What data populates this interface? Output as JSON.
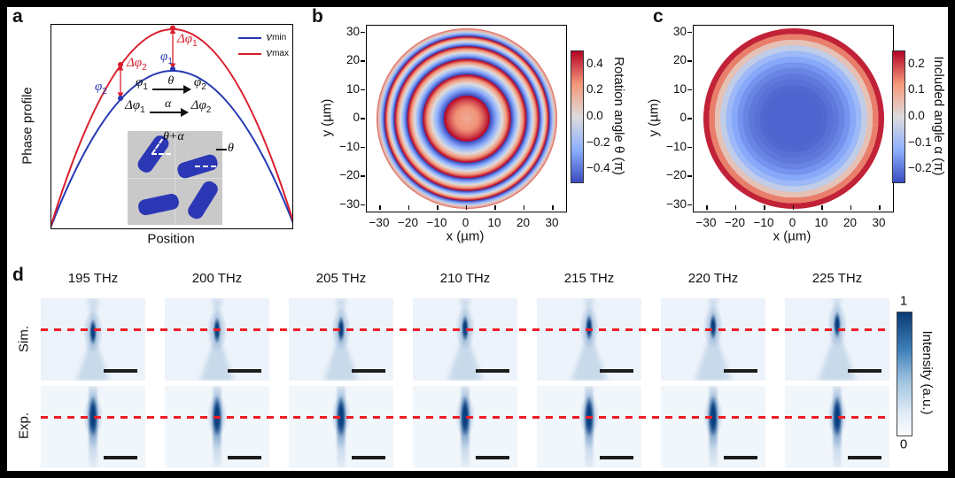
{
  "colors": {
    "frame": "#000000",
    "accent_red": "#d81e2c",
    "accent_blue": "#2438b2",
    "dash_red": "#ee1c25",
    "scale_bar": "#1c1c1c",
    "inset_bg": "#c9c9c9",
    "meta_atom_blue": "#2b37b5",
    "colormap_diverging": [
      {
        "v": -0.5,
        "c": "#3b4cc0"
      },
      {
        "v": -0.25,
        "c": "#8db0fe"
      },
      {
        "v": 0,
        "c": "#dddcdc"
      },
      {
        "v": 0.25,
        "c": "#f4987a"
      },
      {
        "v": 0.5,
        "c": "#b40426"
      }
    ],
    "blues_colormap": [
      {
        "v": 0,
        "c": "#fbfdff"
      },
      {
        "v": 0.2,
        "c": "#dce9f5"
      },
      {
        "v": 0.45,
        "c": "#9dc2de"
      },
      {
        "v": 0.7,
        "c": "#3e7fb8"
      },
      {
        "v": 1,
        "c": "#0a3a74"
      }
    ]
  },
  "panel_a": {
    "label": "a",
    "ylabel": "Phase profile",
    "xlabel": "Position",
    "legend": [
      {
        "sym": "ν",
        "sub": "min"
      },
      {
        "sym": "ν",
        "sub": "max"
      }
    ],
    "annotations": {
      "dphi1": {
        "t": "Δφ",
        "s": "1"
      },
      "phi1": {
        "t": "φ",
        "s": "1"
      },
      "dphi2": {
        "t": "Δφ",
        "s": "2"
      },
      "phi2": {
        "t": "φ",
        "s": "2"
      },
      "map_theta": {
        "from_t": "φ",
        "from_s": "1",
        "over": "θ",
        "to_t": "φ",
        "to_s": "2"
      },
      "map_alpha": {
        "from_t": "Δφ",
        "from_s": "1",
        "over": "α",
        "to_t": "Δφ",
        "to_s": "2"
      },
      "inset_top_angle": "θ+α",
      "inset_right_angle": "θ"
    }
  },
  "panel_b": {
    "label": "b",
    "xlabel": "x (µm)",
    "ylabel": "y (µm)",
    "xticks": [
      {
        "label": "−30",
        "v": -30
      },
      {
        "label": "−20",
        "v": -20
      },
      {
        "label": "−10",
        "v": -10
      },
      {
        "label": "0",
        "v": 0
      },
      {
        "label": "10",
        "v": 10
      },
      {
        "label": "20",
        "v": 20
      },
      {
        "label": "30",
        "v": 30
      }
    ],
    "yticks": [
      {
        "label": "30",
        "v": 30
      },
      {
        "label": "20",
        "v": 20
      },
      {
        "label": "10",
        "v": 10
      },
      {
        "label": "0",
        "v": 0
      },
      {
        "label": "−10",
        "v": -10
      },
      {
        "label": "−20",
        "v": -20
      },
      {
        "label": "−30",
        "v": -30
      }
    ],
    "colorbar": {
      "title": "Rotation angle θ (π)",
      "vmax": 0.5,
      "ticks": [
        {
          "label": "0.4",
          "v": 0.4
        },
        {
          "label": "0.2",
          "v": 0.2
        },
        {
          "label": "0.0",
          "v": 0
        },
        {
          "label": "−0.2",
          "v": -0.2
        },
        {
          "label": "−0.4",
          "v": -0.4
        }
      ]
    }
  },
  "panel_c": {
    "label": "c",
    "xlabel": "x (µm)",
    "ylabel": "y (µm)",
    "xticks": [
      {
        "label": "−30",
        "v": -30
      },
      {
        "label": "−20",
        "v": -20
      },
      {
        "label": "−10",
        "v": -10
      },
      {
        "label": "0",
        "v": 0
      },
      {
        "label": "10",
        "v": 10
      },
      {
        "label": "20",
        "v": 20
      },
      {
        "label": "30",
        "v": 30
      }
    ],
    "yticks": [
      {
        "label": "30",
        "v": 30
      },
      {
        "label": "20",
        "v": 20
      },
      {
        "label": "10",
        "v": 10
      },
      {
        "label": "0",
        "v": 0
      },
      {
        "label": "−10",
        "v": -10
      },
      {
        "label": "−20",
        "v": -20
      },
      {
        "label": "−30",
        "v": -30
      }
    ],
    "colorbar": {
      "title": "Included angle α (π)",
      "vmax": 0.25,
      "ticks": [
        {
          "label": "0.2",
          "v": 0.2
        },
        {
          "label": "0.1",
          "v": 0.1
        },
        {
          "label": "0.0",
          "v": 0
        },
        {
          "label": "−0.1",
          "v": -0.1
        },
        {
          "label": "−0.2",
          "v": -0.2
        }
      ]
    }
  },
  "panel_d": {
    "label": "d",
    "frequencies": [
      "195 THz",
      "200 THz",
      "205 THz",
      "210 THz",
      "215 THz",
      "220 THz",
      "225 THz"
    ],
    "row_labels": [
      "Sim.",
      "Exp."
    ],
    "colorbar": {
      "title": "Intensity (a.u.)",
      "top_tick": "1",
      "bottom_tick": "0"
    }
  },
  "chart_data": [
    {
      "panel": "a",
      "type": "line",
      "xlabel": "Position",
      "ylabel": "Phase profile",
      "x_normalized": [
        0,
        0.125,
        0.25,
        0.375,
        0.5,
        0.625,
        0.75,
        0.875,
        1
      ],
      "series": [
        {
          "name": "ν_min",
          "color": "#2438b2",
          "values": [
            0,
            0.34,
            0.59,
            0.75,
            0.8,
            0.75,
            0.59,
            0.34,
            0
          ]
        },
        {
          "name": "ν_max",
          "color": "#d81e2c",
          "values": [
            0,
            0.43,
            0.74,
            0.93,
            1.0,
            0.93,
            0.74,
            0.43,
            0
          ]
        }
      ],
      "legend_position": "top-right",
      "annotations": [
        "Δφ1: phase offset between ν_max and ν_min at profile peak (φ1)",
        "Δφ2: phase offset at off-center position (φ2)",
        "φ1 maps to φ2 via rotation angle θ",
        "Δφ1 maps to Δφ2 via included angle α",
        "inset: four rotated rectangular meta-atoms on gray 2×2 grid, angles θ+α and θ"
      ]
    },
    {
      "panel": "b",
      "type": "heatmap",
      "title": "Rotation angle θ (π)",
      "xlabel": "x (µm)",
      "ylabel": "y (µm)",
      "xlim": [
        -34.5,
        34.5
      ],
      "ylim": [
        -32,
        32
      ],
      "aperture_radius_um": 32,
      "value_range_pi": [
        -0.5,
        0.5
      ],
      "center_value_pi": 0.18,
      "rim_value_pi": 0.35,
      "phase_wrap_radii_um": [
        8,
        15.5,
        21,
        25.5,
        29
      ],
      "xticks": [
        -30,
        -20,
        -10,
        0,
        10,
        20,
        30
      ],
      "yticks": [
        -30,
        -20,
        -10,
        0,
        10,
        20,
        30
      ],
      "colormap": "blue-white-red diverging",
      "pattern": "concentric sawtooth rings: value rises from -0.5π to +0.5π within each ring, ring period shrinks with radius (lens phase wrap)"
    },
    {
      "panel": "c",
      "type": "heatmap",
      "title": "Included angle α (π)",
      "xlabel": "x (µm)",
      "ylabel": "y (µm)",
      "xlim": [
        -34.5,
        34.5
      ],
      "ylim": [
        -32,
        32
      ],
      "aperture_radius_um": 32,
      "value_range_pi": [
        -0.25,
        0.25
      ],
      "radial_profile": {
        "r_um": [
          0,
          10,
          16,
          20,
          23,
          25.5,
          27,
          28.5,
          30,
          32
        ],
        "alpha_pi": [
          -0.22,
          -0.22,
          -0.19,
          -0.15,
          -0.1,
          -0.03,
          0.05,
          0.12,
          0.2,
          0.25
        ]
      },
      "xticks": [
        -30,
        -20,
        -10,
        0,
        10,
        20,
        30
      ],
      "yticks": [
        -30,
        -20,
        -10,
        0,
        10,
        20,
        30
      ],
      "colormap": "blue-white-red diverging",
      "pattern": "smooth bowl: deep blue (≈−0.22π) across center, rising through white ring near r≈26 µm to dark red (≈+0.25π) at rim"
    },
    {
      "panel": "d",
      "type": "image-grid",
      "rows": [
        "Sim.",
        "Exp."
      ],
      "columns_thz": [
        195,
        200,
        205,
        210,
        215,
        220,
        225
      ],
      "intensity_range_au": [
        0,
        1
      ],
      "focal_line_constant": true,
      "description": "x–z focal intensity maps; dark blue vertical focal streak in each frame; horizontal red dashed line marks the common focal plane across all frequencies; black scale bar at bottom right of every frame; Sim. row shows converging/diverging beam cone, Exp. row shows measured focal streak"
    }
  ]
}
